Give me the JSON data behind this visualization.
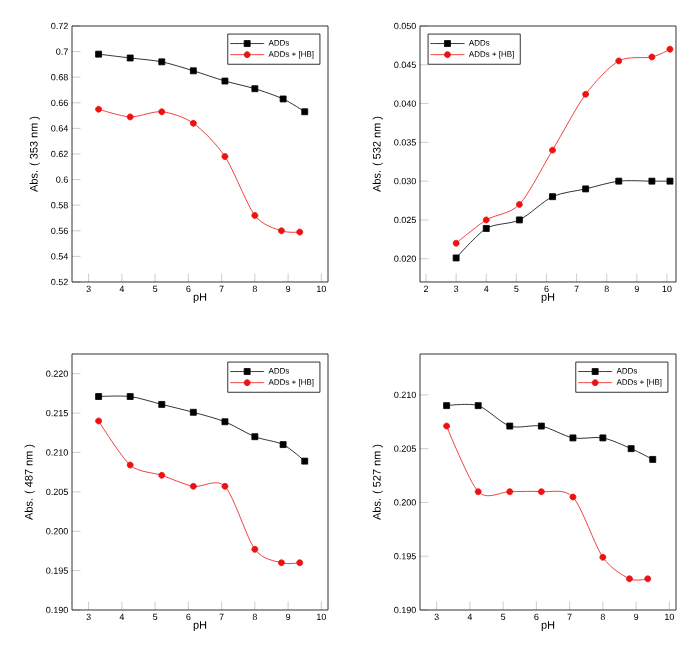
{
  "chart_data": [
    {
      "type": "line",
      "xlabel": "pH",
      "ylabel": "Abs. ( 353 nm )",
      "xlim": [
        2.5,
        10.2
      ],
      "xticks": [
        3,
        4,
        5,
        6,
        7,
        8,
        9,
        10
      ],
      "ylim": [
        0.52,
        0.72
      ],
      "yticks": [
        0.52,
        0.54,
        0.56,
        0.58,
        0.6,
        0.62,
        0.64,
        0.66,
        0.68,
        0.7,
        0.72
      ],
      "legend": "top right",
      "series": [
        {
          "name": "ADDs",
          "color": "#000000",
          "marker": "square",
          "x": [
            3.3,
            4.25,
            5.2,
            6.15,
            7.1,
            8.0,
            8.85,
            9.5
          ],
          "values": [
            0.698,
            0.695,
            0.692,
            0.685,
            0.677,
            0.671,
            0.663,
            0.653
          ]
        },
        {
          "name": "ADDs + [HB]",
          "color": "#ee1111",
          "marker": "circle",
          "x": [
            3.3,
            4.25,
            5.2,
            6.15,
            7.1,
            8.0,
            8.8,
            9.35
          ],
          "values": [
            0.655,
            0.649,
            0.653,
            0.644,
            0.618,
            0.572,
            0.56,
            0.559
          ]
        }
      ]
    },
    {
      "type": "line",
      "xlabel": "pH",
      "ylabel": "Abs. ( 532 nm )",
      "xlim": [
        1.8,
        10.3
      ],
      "xticks": [
        2,
        3,
        4,
        5,
        6,
        7,
        8,
        9,
        10
      ],
      "ylim": [
        0.017,
        0.05
      ],
      "yticks": [
        {
          "value": 0.02,
          "label": "0.020"
        },
        {
          "value": 0.025,
          "label": "0.025"
        },
        {
          "value": 0.03,
          "label": "0.030"
        },
        {
          "value": 0.035,
          "label": "0.035"
        },
        {
          "value": 0.04,
          "label": "0.040"
        },
        {
          "value": 0.045,
          "label": "0.045"
        },
        {
          "value": 0.05,
          "label": "0.050"
        }
      ],
      "legend": "top left",
      "series": [
        {
          "name": "ADDs",
          "color": "#000000",
          "marker": "square",
          "x": [
            3.0,
            4.0,
            5.1,
            6.2,
            7.3,
            8.4,
            9.5,
            10.1
          ],
          "values": [
            0.0201,
            0.0239,
            0.025,
            0.028,
            0.029,
            0.03,
            0.03,
            0.03
          ]
        },
        {
          "name": "ADDs + [HB]",
          "color": "#ee1111",
          "marker": "circle",
          "x": [
            3.0,
            4.0,
            5.1,
            6.2,
            7.3,
            8.4,
            9.5,
            10.1
          ],
          "values": [
            0.022,
            0.025,
            0.027,
            0.034,
            0.0412,
            0.0455,
            0.046,
            0.047
          ]
        }
      ]
    },
    {
      "type": "line",
      "xlabel": "pH",
      "ylabel": "Abs. ( 487 nm )",
      "xlim": [
        2.5,
        10.2
      ],
      "xticks": [
        3,
        4,
        5,
        6,
        7,
        8,
        9,
        10
      ],
      "ylim": [
        0.19,
        0.2225
      ],
      "yticks": [
        {
          "value": 0.19,
          "label": "0.190"
        },
        0.195,
        {
          "value": 0.2,
          "label": "0.200"
        },
        0.205,
        {
          "value": 0.21,
          "label": "0.210"
        },
        0.215,
        {
          "value": 0.22,
          "label": "0.220"
        }
      ],
      "legend": "top right",
      "series": [
        {
          "name": "ADDs",
          "color": "#000000",
          "marker": "square",
          "x": [
            3.3,
            4.25,
            5.2,
            6.15,
            7.1,
            8.0,
            8.85,
            9.5
          ],
          "values": [
            0.2171,
            0.2171,
            0.2161,
            0.2151,
            0.2139,
            0.212,
            0.211,
            0.2089
          ]
        },
        {
          "name": "ADDs + [HB]",
          "color": "#ee1111",
          "marker": "circle",
          "x": [
            3.3,
            4.25,
            5.2,
            6.15,
            7.1,
            8.0,
            8.8,
            9.35
          ],
          "values": [
            0.214,
            0.2084,
            0.2071,
            0.2057,
            0.2057,
            0.1977,
            0.196,
            0.196
          ]
        }
      ]
    },
    {
      "type": "line",
      "xlabel": "pH",
      "ylabel": "Abs. ( 527 nm )",
      "xlim": [
        2.5,
        10.2
      ],
      "xticks": [
        3,
        4,
        5,
        6,
        7,
        8,
        9,
        10
      ],
      "ylim": [
        0.19,
        0.2138
      ],
      "yticks": [
        {
          "value": 0.19,
          "label": "0.190"
        },
        0.195,
        {
          "value": 0.2,
          "label": "0.200"
        },
        0.205,
        {
          "value": 0.21,
          "label": "0.210"
        }
      ],
      "legend": "top right",
      "series": [
        {
          "name": "ADDs",
          "color": "#000000",
          "marker": "square",
          "x": [
            3.3,
            4.25,
            5.2,
            6.15,
            7.1,
            8.0,
            8.85,
            9.5
          ],
          "values": [
            0.209,
            0.209,
            0.2071,
            0.2071,
            0.206,
            0.206,
            0.205,
            0.204
          ]
        },
        {
          "name": "ADDs + [HB]",
          "color": "#ee1111",
          "marker": "circle",
          "x": [
            3.3,
            4.25,
            5.2,
            6.15,
            7.1,
            8.0,
            8.8,
            9.35
          ],
          "values": [
            0.2071,
            0.201,
            0.201,
            0.201,
            0.2005,
            0.1949,
            0.1929,
            0.1929
          ]
        }
      ]
    }
  ]
}
